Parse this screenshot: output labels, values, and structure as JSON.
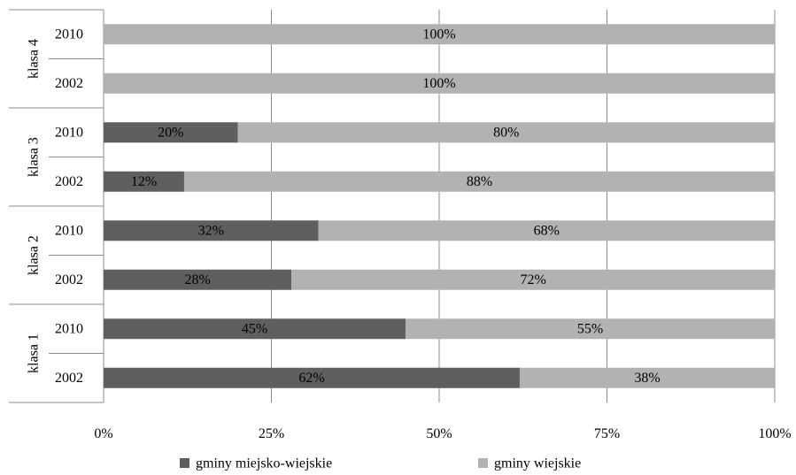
{
  "chart_data": {
    "type": "bar",
    "orientation": "horizontal",
    "stacked": "percent",
    "groups": [
      {
        "label": "klasa 4",
        "rows": [
          {
            "year": "2010",
            "values": [
              0,
              100
            ]
          },
          {
            "year": "2002",
            "values": [
              0,
              100
            ]
          }
        ]
      },
      {
        "label": "klasa 3",
        "rows": [
          {
            "year": "2010",
            "values": [
              20,
              80
            ]
          },
          {
            "year": "2002",
            "values": [
              12,
              88
            ]
          }
        ]
      },
      {
        "label": "klasa 2",
        "rows": [
          {
            "year": "2010",
            "values": [
              32,
              68
            ]
          },
          {
            "year": "2002",
            "values": [
              28,
              72
            ]
          }
        ]
      },
      {
        "label": "klasa 1",
        "rows": [
          {
            "year": "2010",
            "values": [
              45,
              55
            ]
          },
          {
            "year": "2002",
            "values": [
              62,
              38
            ]
          }
        ]
      }
    ],
    "series": [
      {
        "name": "gminy miejsko-wiejskie",
        "color": "#5f5f5f"
      },
      {
        "name": "gminy wiejskie",
        "color": "#b2b2b2"
      }
    ],
    "xticks": [
      "0%",
      "25%",
      "50%",
      "75%",
      "100%"
    ],
    "xlim": [
      0,
      100
    ],
    "grid": true,
    "legend_position": "bottom",
    "title": "",
    "xlabel": "",
    "ylabel": ""
  }
}
